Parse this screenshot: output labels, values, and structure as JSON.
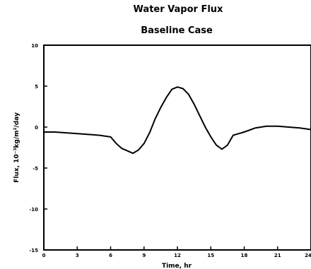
{
  "chart_data": {
    "type": "line",
    "title": "Water Vapor Flux",
    "subtitle": "Baseline Case",
    "xlabel": "Time, hr",
    "ylabel": "Flux, 10⁻³kg/m²/day",
    "xlim": [
      0,
      24
    ],
    "ylim": [
      -15,
      10
    ],
    "x_ticks": [
      0,
      3,
      6,
      9,
      12,
      15,
      18,
      21,
      24
    ],
    "y_ticks": [
      -15,
      -10,
      -5,
      0,
      5,
      10
    ],
    "grid": false,
    "series": [
      {
        "x": [
          0,
          1,
          2,
          3,
          4,
          5,
          6,
          6.5,
          7,
          7.5,
          8,
          8.5,
          9,
          9.5,
          10,
          10.5,
          11,
          11.5,
          12,
          12.5,
          13,
          13.5,
          14,
          14.5,
          15,
          15.5,
          16,
          16.5,
          17,
          17.5,
          18,
          19,
          20,
          21,
          22,
          23,
          24
        ],
        "y": [
          -0.6,
          -0.6,
          -0.7,
          -0.8,
          -0.9,
          -1.0,
          -1.2,
          -2.0,
          -2.6,
          -2.9,
          -3.2,
          -2.8,
          -2.0,
          -0.7,
          1.0,
          2.4,
          3.6,
          4.6,
          4.9,
          4.7,
          4.0,
          2.8,
          1.4,
          0,
          -1.2,
          -2.2,
          -2.7,
          -2.2,
          -1.0,
          -0.8,
          -0.6,
          -0.1,
          0.1,
          0.1,
          0,
          -0.1,
          -0.3
        ]
      }
    ]
  }
}
